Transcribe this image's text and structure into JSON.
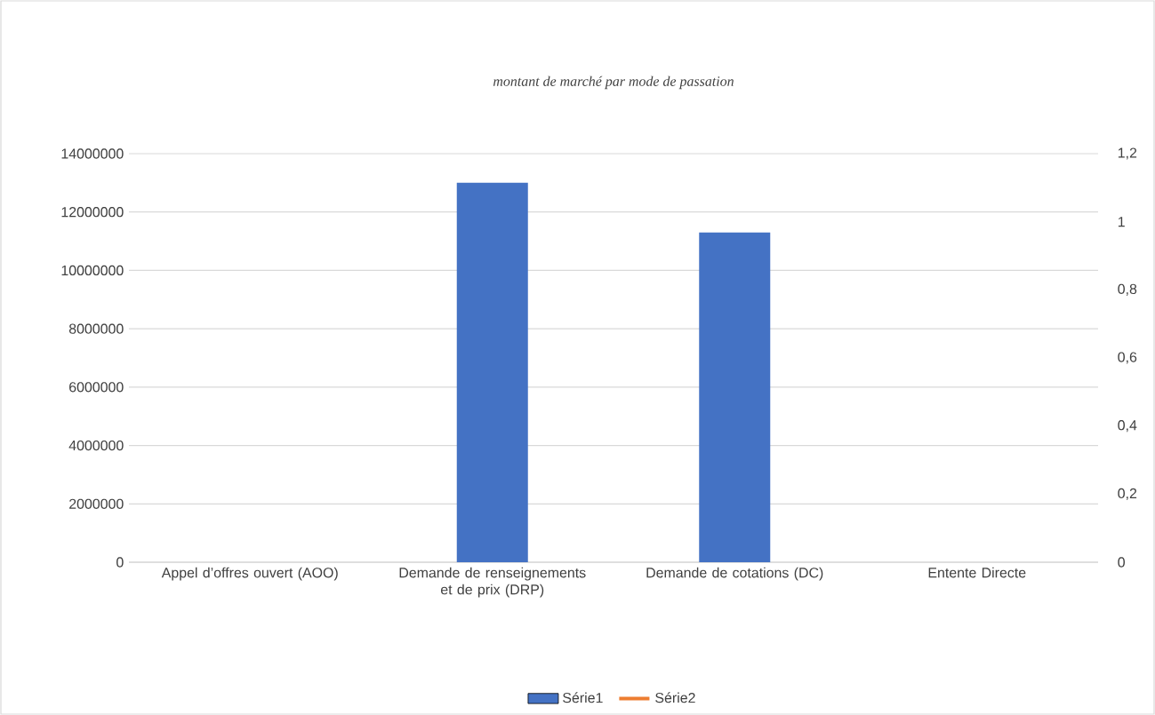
{
  "chart_data": {
    "type": "bar",
    "title": "montant de marché par mode de passation",
    "categories": [
      "Appel d’offres ouvert (AOO)",
      "Demande de renseignements et de prix (DRP)",
      "Demande de cotations (DC)",
      "Entente Directe"
    ],
    "series": [
      {
        "name": "Série1",
        "color": "#4472c4",
        "values": [
          null,
          13000000,
          11300000,
          null
        ]
      },
      {
        "name": "Série2",
        "color": "#ed7d31",
        "type": "line",
        "axis": "y2",
        "values": [
          null,
          null,
          null,
          null
        ]
      }
    ],
    "ylim": [
      0,
      14000000
    ],
    "yticks": [
      0,
      2000000,
      4000000,
      6000000,
      8000000,
      10000000,
      12000000,
      14000000
    ],
    "y2lim": [
      0,
      1.2
    ],
    "y2ticks": [
      {
        "value": 0,
        "label": "0"
      },
      {
        "value": 0.2,
        "label": "0,2"
      },
      {
        "value": 0.4,
        "label": "0,4"
      },
      {
        "value": 0.6,
        "label": "0,6"
      },
      {
        "value": 0.8,
        "label": "0,8"
      },
      {
        "value": 1,
        "label": "1"
      },
      {
        "value": 1.2,
        "label": "1,2"
      }
    ],
    "grid": "y",
    "legend": "bottom"
  }
}
